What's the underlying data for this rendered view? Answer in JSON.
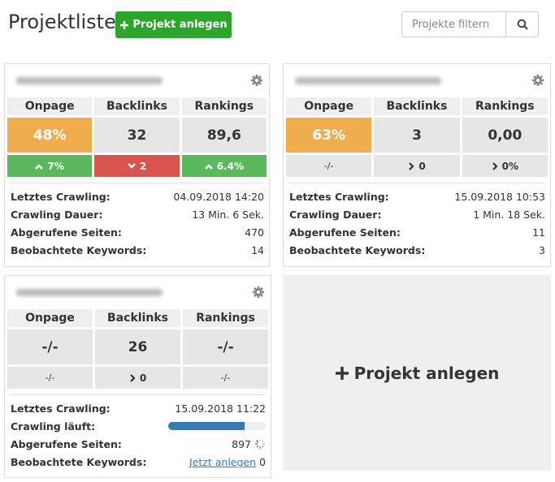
{
  "header": {
    "title": "Projektliste",
    "add_button": "Projekt anlegen",
    "filter_placeholder": "Projekte filtern"
  },
  "projects": [
    {
      "metrics": [
        {
          "label": "Onpage",
          "value": "48%",
          "highlight": true,
          "change": "7%",
          "trend": "up"
        },
        {
          "label": "Backlinks",
          "value": "32",
          "highlight": false,
          "change": "2",
          "trend": "down"
        },
        {
          "label": "Rankings",
          "value": "89,6",
          "highlight": false,
          "change": "6.4%",
          "trend": "up"
        }
      ],
      "details": [
        {
          "label": "Letztes Crawling:",
          "value": "04.09.2018 14:20"
        },
        {
          "label": "Crawling Dauer:",
          "value": "13 Min. 6 Sek."
        },
        {
          "label": "Abgerufene Seiten:",
          "value": "470"
        },
        {
          "label": "Beobachtete Keywords:",
          "value": "14"
        }
      ]
    },
    {
      "metrics": [
        {
          "label": "Onpage",
          "value": "63%",
          "highlight": true,
          "change": "-/-",
          "trend": "none"
        },
        {
          "label": "Backlinks",
          "value": "3",
          "highlight": false,
          "change": "0",
          "trend": "flat"
        },
        {
          "label": "Rankings",
          "value": "0,00",
          "highlight": false,
          "change": "0%",
          "trend": "flat"
        }
      ],
      "details": [
        {
          "label": "Letztes Crawling:",
          "value": "15.09.2018 10:53"
        },
        {
          "label": "Crawling Dauer:",
          "value": "1 Min. 18 Sek."
        },
        {
          "label": "Abgerufene Seiten:",
          "value": "11"
        },
        {
          "label": "Beobachtete Keywords:",
          "value": "3"
        }
      ]
    },
    {
      "metrics": [
        {
          "label": "Onpage",
          "value": "-/-",
          "highlight": false,
          "change": "-/-",
          "trend": "none"
        },
        {
          "label": "Backlinks",
          "value": "26",
          "highlight": false,
          "change": "0",
          "trend": "flat"
        },
        {
          "label": "Rankings",
          "value": "-/-",
          "highlight": false,
          "change": "-/-",
          "trend": "none"
        }
      ],
      "details": [
        {
          "label": "Letztes Crawling:",
          "value": "15.09.2018 11:22"
        },
        {
          "label": "Crawling läuft:",
          "progress": 78
        },
        {
          "label": "Abgerufene Seiten:",
          "value": "897",
          "loading": true
        },
        {
          "label": "Beobachtete Keywords:",
          "link": "Jetzt anlegen",
          "value": "0"
        }
      ]
    }
  ],
  "add_card": "Projekt anlegen"
}
